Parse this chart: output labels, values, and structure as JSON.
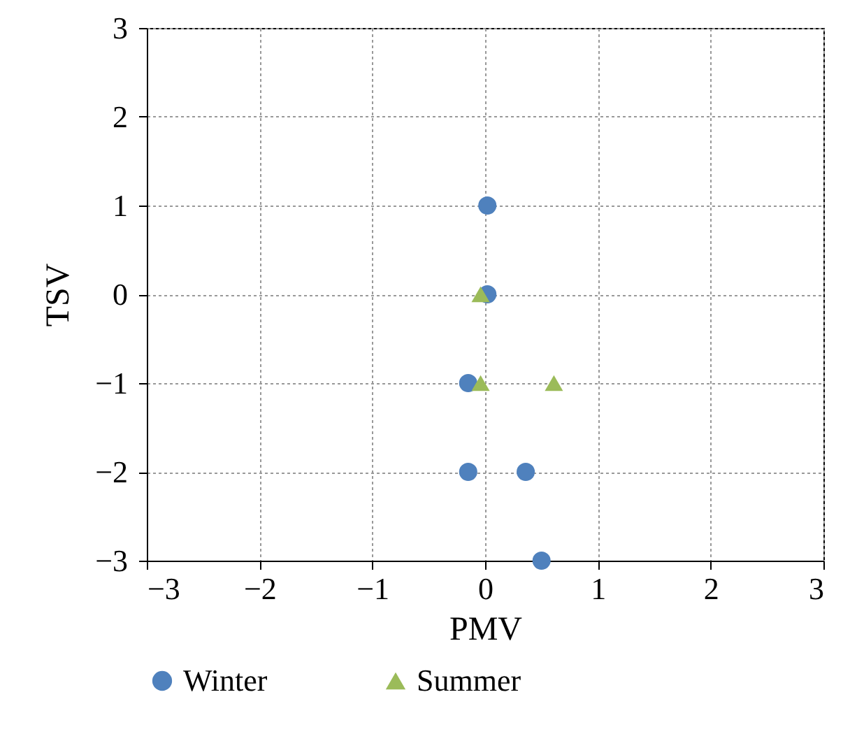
{
  "chart_data": {
    "type": "scatter",
    "xlabel": "PMV",
    "ylabel": "TSV",
    "xlim": [
      -3,
      3
    ],
    "xticks": [
      -3,
      -2,
      -1,
      0,
      1,
      2,
      3
    ],
    "ylim": [
      -3,
      3
    ],
    "yticks": [
      -3,
      -2,
      -1,
      0,
      1,
      2,
      3
    ],
    "grid": true,
    "legend": "bottom",
    "series": [
      {
        "name": "Winter",
        "color": "#4f81bd",
        "marker": "circle",
        "x": [
          0.02,
          0.02,
          -0.15,
          -0.15,
          0.36,
          0.5
        ],
        "values": [
          1,
          0,
          -1,
          -2,
          -2,
          -3
        ]
      },
      {
        "name": "Summer",
        "color": "#9bbb59",
        "marker": "triangle",
        "x": [
          -0.04,
          -0.04,
          0.61
        ],
        "values": [
          0,
          -1,
          -1
        ]
      }
    ]
  }
}
